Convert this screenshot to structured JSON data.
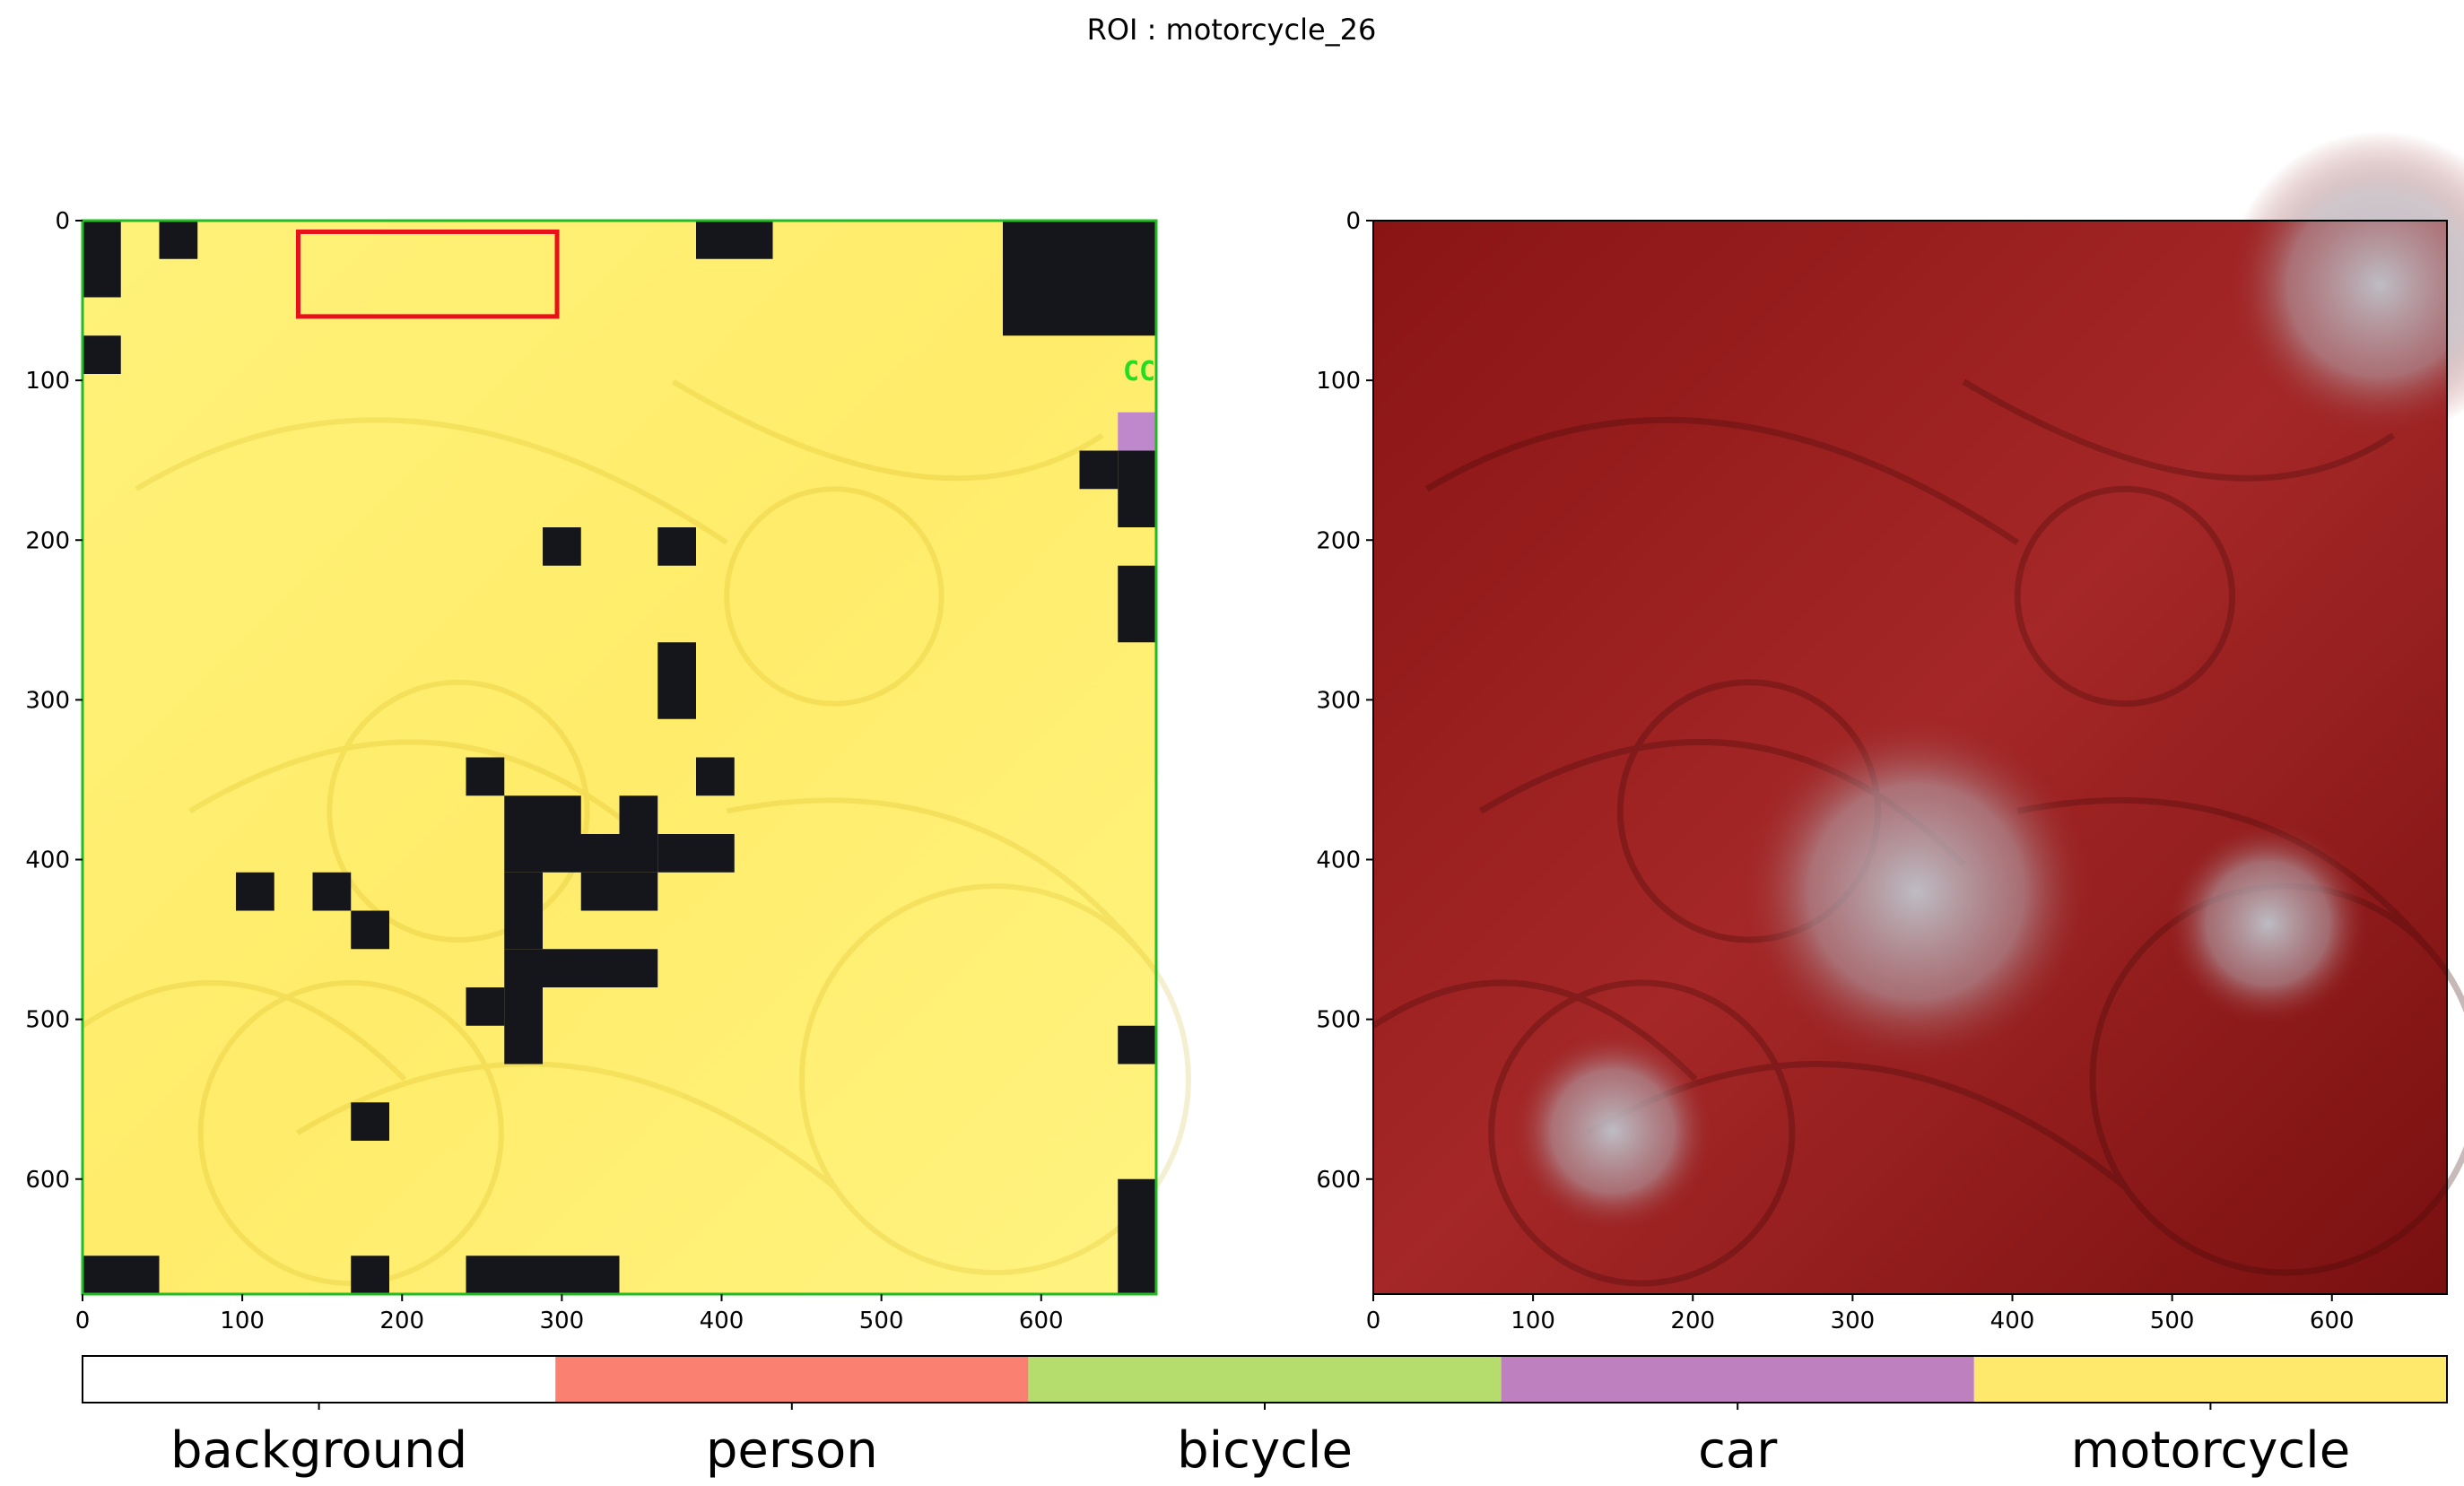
{
  "figure": {
    "title": "ROI : motorcycle_26"
  },
  "chart_data": [
    {
      "type": "heatmap",
      "panel": "left",
      "description_kind": "segmentation-overlay",
      "xlim": [
        0,
        672
      ],
      "ylim": [
        672,
        0
      ],
      "xticks": [
        0,
        100,
        200,
        300,
        400,
        500,
        600
      ],
      "yticks": [
        0,
        100,
        200,
        300,
        400,
        500,
        600
      ],
      "overlay_color": "#ffe862",
      "roi_box": {
        "x0": 135,
        "y0": 7,
        "x1": 297,
        "y1": 60,
        "color": "#e8101a"
      },
      "border_color": "#22bb22",
      "dark_cells": [
        [
          0,
          0,
          24,
          48
        ],
        [
          48,
          0,
          72,
          24
        ],
        [
          0,
          72,
          24,
          96
        ],
        [
          384,
          0,
          432,
          24
        ],
        [
          576,
          0,
          672,
          72
        ],
        [
          624,
          144,
          648,
          168
        ],
        [
          648,
          144,
          672,
          192
        ],
        [
          288,
          192,
          312,
          216
        ],
        [
          360,
          192,
          384,
          216
        ],
        [
          360,
          264,
          384,
          312
        ],
        [
          648,
          216,
          672,
          264
        ],
        [
          240,
          336,
          264,
          360
        ],
        [
          384,
          336,
          408,
          360
        ],
        [
          264,
          360,
          312,
          384
        ],
        [
          336,
          360,
          360,
          408
        ],
        [
          264,
          384,
          336,
          408
        ],
        [
          360,
          384,
          408,
          408
        ],
        [
          96,
          408,
          120,
          432
        ],
        [
          144,
          408,
          168,
          432
        ],
        [
          264,
          408,
          288,
          456
        ],
        [
          312,
          408,
          360,
          432
        ],
        [
          168,
          432,
          192,
          456
        ],
        [
          264,
          456,
          360,
          480
        ],
        [
          240,
          480,
          264,
          504
        ],
        [
          264,
          480,
          288,
          528
        ],
        [
          648,
          504,
          672,
          528
        ],
        [
          168,
          552,
          192,
          576
        ],
        [
          0,
          648,
          48,
          672
        ],
        [
          168,
          648,
          192,
          672
        ],
        [
          240,
          648,
          336,
          672
        ],
        [
          648,
          600,
          672,
          672
        ]
      ],
      "car_cell": [
        648,
        120,
        672,
        144
      ],
      "car_cell_color": "#c088cc"
    },
    {
      "type": "heatmap",
      "panel": "right",
      "xlim": [
        0,
        672
      ],
      "ylim": [
        672,
        0
      ],
      "xticks": [
        0,
        100,
        200,
        300,
        400,
        500,
        600
      ],
      "yticks": [
        0,
        100,
        200,
        300,
        400,
        500,
        600
      ],
      "colormap": "reds",
      "low_activation_regions": [
        {
          "x": 630,
          "y": 40,
          "r": 60
        },
        {
          "x": 340,
          "y": 420,
          "r": 70
        },
        {
          "x": 150,
          "y": 570,
          "r": 40
        },
        {
          "x": 560,
          "y": 440,
          "r": 40
        }
      ]
    },
    {
      "type": "bar",
      "role": "colorbar-legend",
      "categories": [
        "background",
        "person",
        "bicycle",
        "car",
        "motorcycle"
      ],
      "colors": [
        "#ffffff",
        "#fa8072",
        "#b5dd6e",
        "#be80be",
        "#ffe96c"
      ]
    }
  ]
}
